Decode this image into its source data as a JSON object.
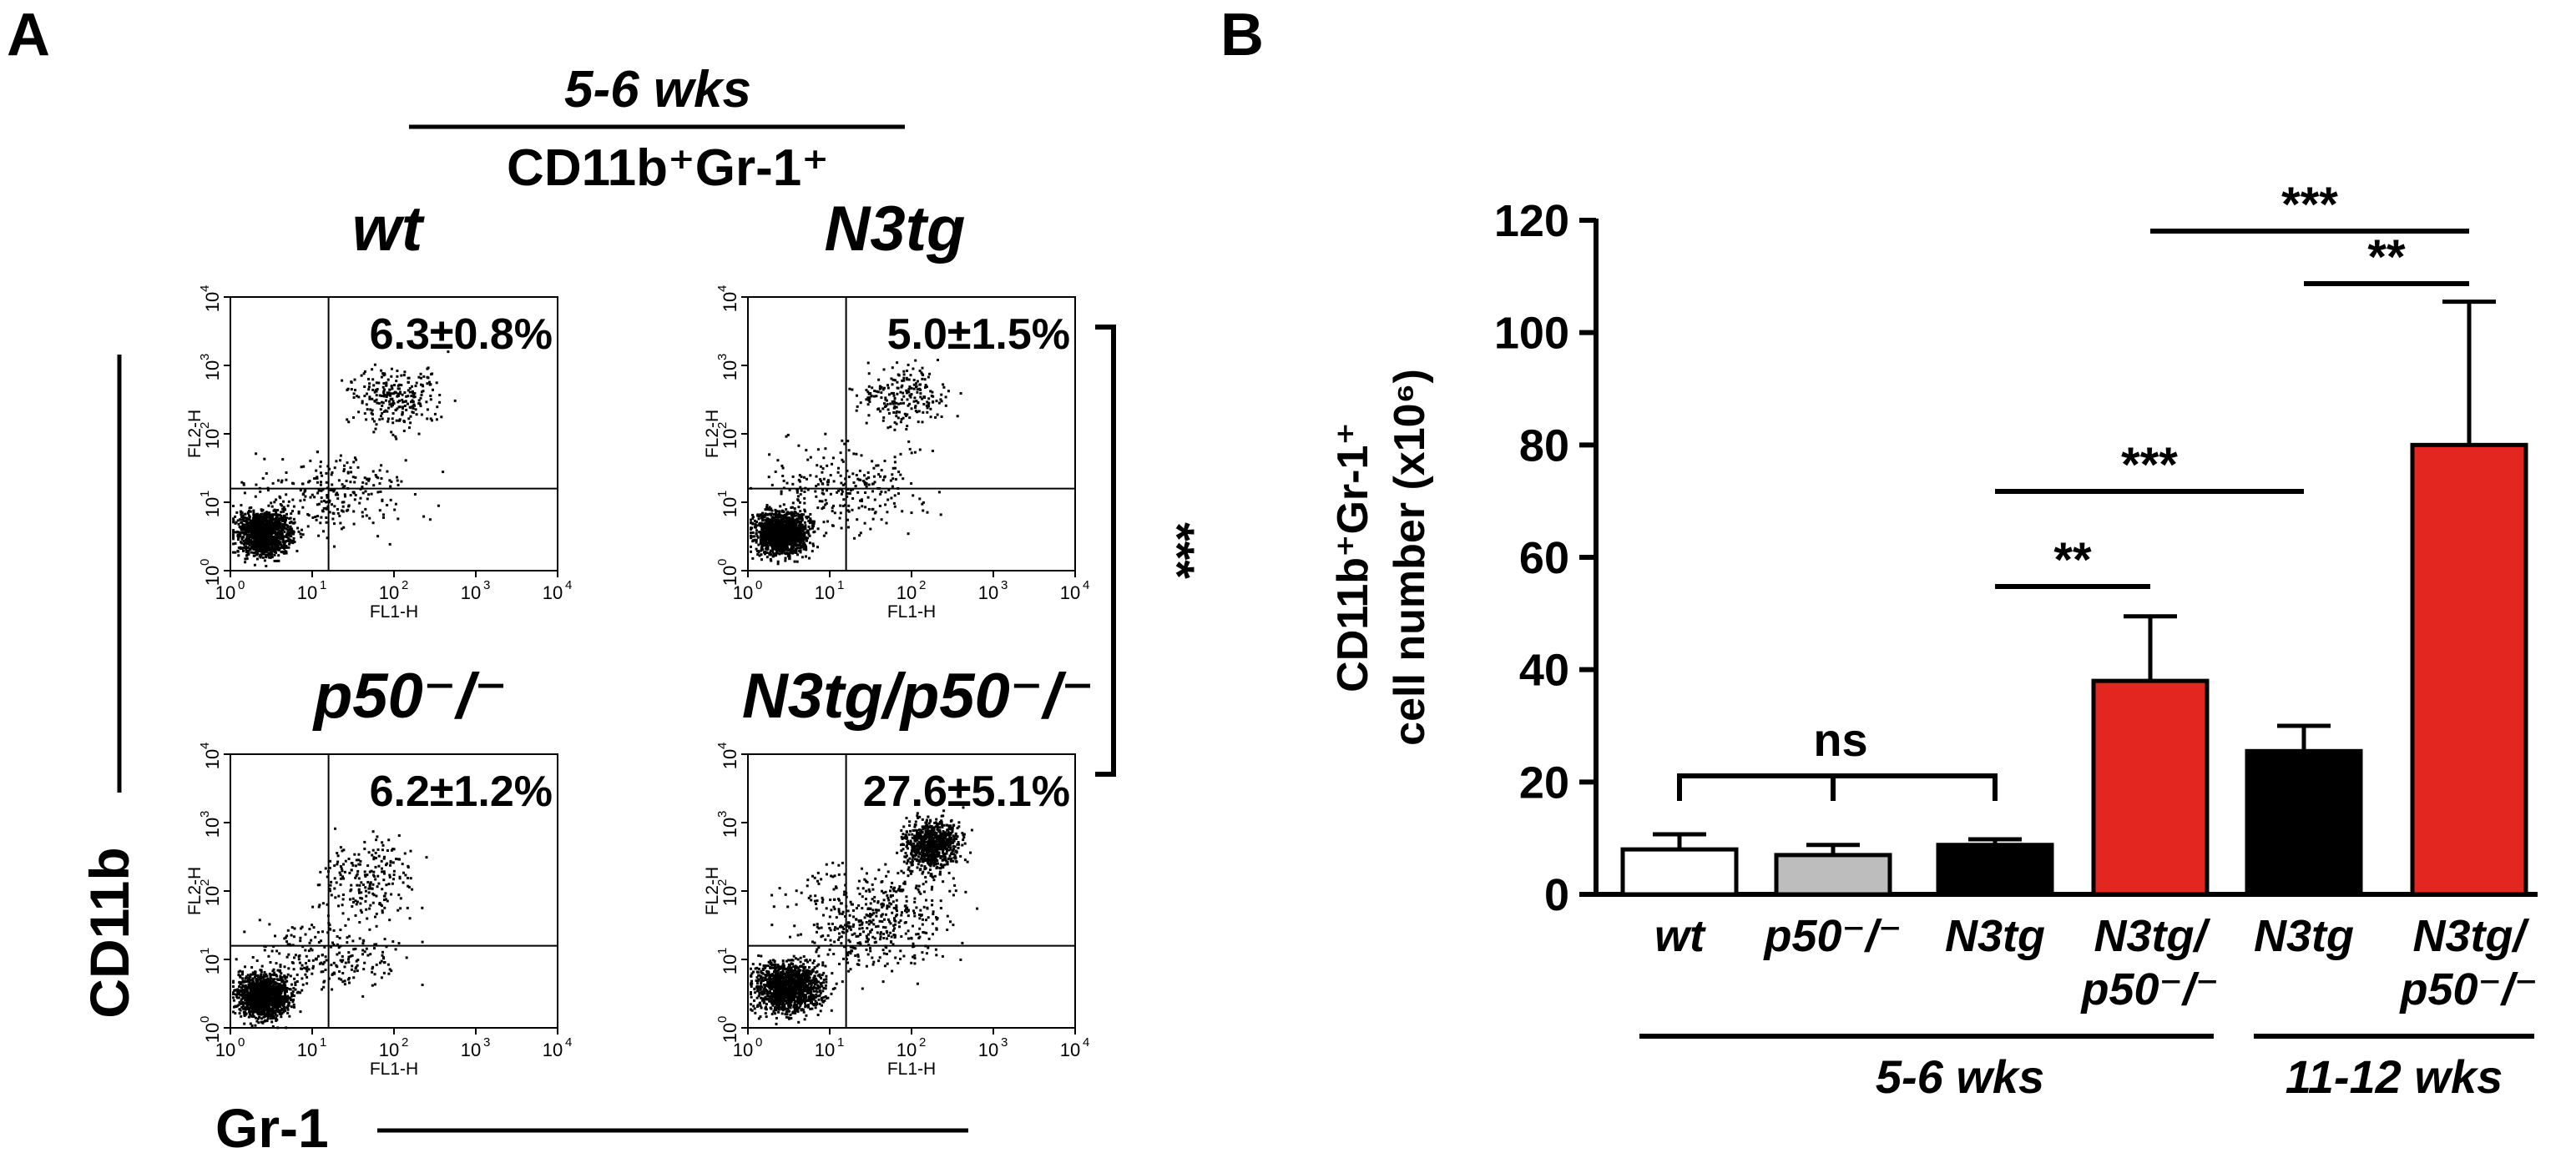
{
  "panel_a": {
    "letter": "A",
    "header_age": "5-6 wks",
    "header_population": "CD11b⁺Gr-1⁺",
    "y_axis_label": "CD11b",
    "x_axis_label": "Gr-1",
    "significance": "***",
    "fl_x": "FL1-H",
    "fl_y": "FL2-H",
    "tick_base": "10",
    "tick_exps": [
      "0",
      "1",
      "2",
      "3",
      "4"
    ],
    "plots": [
      {
        "title": "wt",
        "percent": "6.3±0.8%"
      },
      {
        "title": "N3tg",
        "percent": "5.0±1.5%"
      },
      {
        "title": "p50⁻/⁻",
        "percent": "6.2±1.2%"
      },
      {
        "title": "N3tg/p50⁻/⁻",
        "percent": "27.6±5.1%"
      }
    ]
  },
  "chart_data": {
    "type": "bar",
    "panel_letter": "B",
    "ylabel_line1": "CD11b⁺Gr-1⁺",
    "ylabel_line2": "cell number (x10⁶)",
    "ylim": [
      0,
      120
    ],
    "yticks": [
      "0",
      "20",
      "40",
      "60",
      "80",
      "100",
      "120"
    ],
    "categories": [
      "wt",
      "p50⁻/⁻",
      "N3tg",
      "N3tg/ p50⁻/⁻",
      "N3tg",
      "N3tg/ p50⁻/⁻"
    ],
    "category_lines": [
      [
        "wt"
      ],
      [
        "p50⁻/⁻"
      ],
      [
        "N3tg"
      ],
      [
        "N3tg/",
        "p50⁻/⁻"
      ],
      [
        "N3tg"
      ],
      [
        "N3tg/",
        "p50⁻/⁻"
      ]
    ],
    "values": [
      8,
      7,
      8.8,
      38,
      25.5,
      80
    ],
    "errors": [
      2.7,
      1.8,
      1,
      11.5,
      4.5,
      25.5
    ],
    "colors": [
      "#ffffff",
      "#bdbdbd",
      "#000000",
      "#e3261f",
      "#000000",
      "#e3261f"
    ],
    "groups": [
      {
        "label": "5-6 wks",
        "categories": [
          0,
          1,
          2,
          3
        ]
      },
      {
        "label": "11-12 wks",
        "categories": [
          4,
          5
        ]
      }
    ],
    "comparisons": [
      {
        "bars": [
          0,
          1,
          2
        ],
        "label": "ns"
      },
      {
        "bars": [
          2,
          3
        ],
        "label": "**"
      },
      {
        "bars": [
          2,
          4
        ],
        "label": "***"
      },
      {
        "bars": [
          4,
          5
        ],
        "label": "**"
      },
      {
        "bars": [
          3,
          5
        ],
        "label": "***"
      }
    ]
  }
}
